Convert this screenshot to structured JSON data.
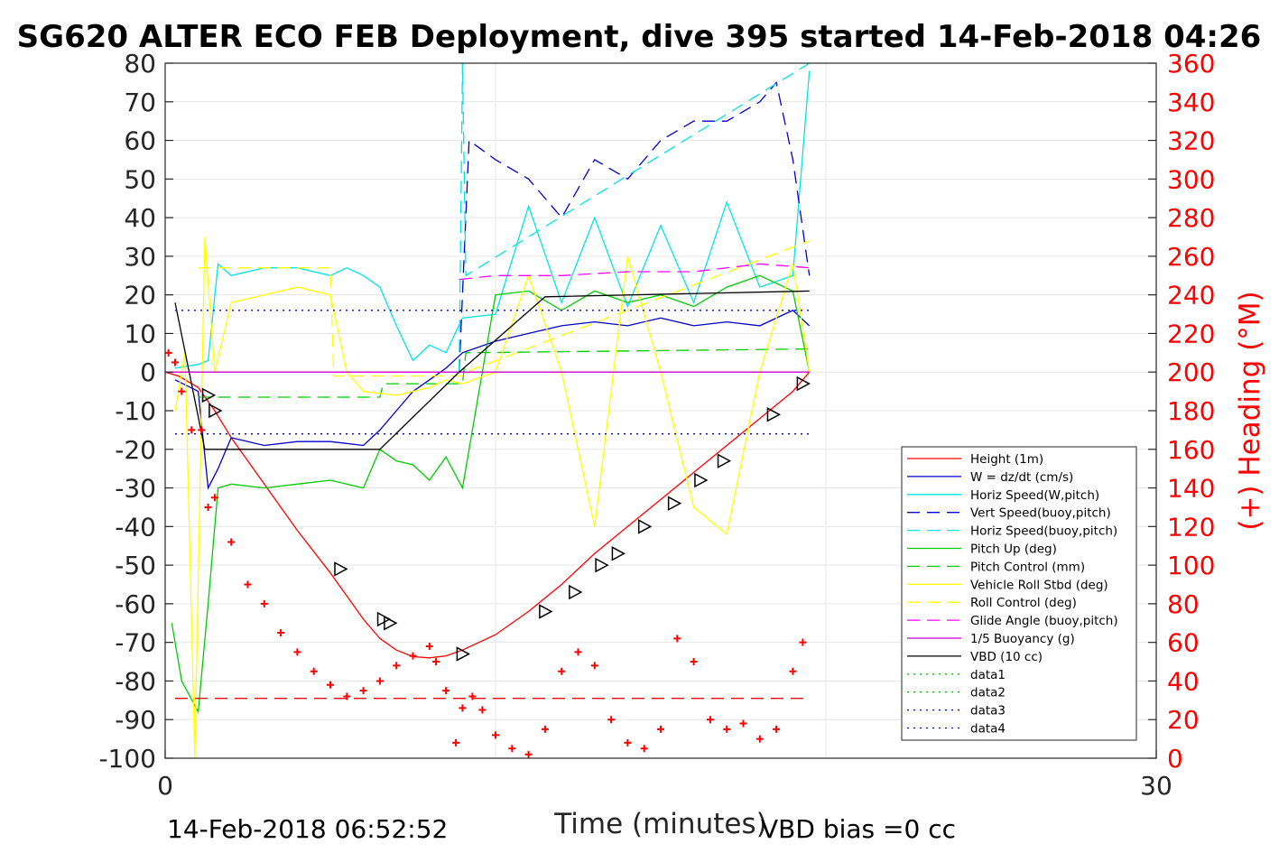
{
  "chart_data": {
    "type": "line",
    "title": "SG620 ALTER ECO FEB Deployment, dive 395 started 14-Feb-2018 04:26",
    "xlabel": "Time (minutes)",
    "ylabel": "",
    "ylabel_right": "(+) Heading (°M)",
    "xlim": [
      0,
      30
    ],
    "ylim": [
      -100,
      80
    ],
    "ylim_right": [
      0,
      360
    ],
    "xticks": [
      "0",
      "30"
    ],
    "yticks": [
      "80",
      "70",
      "60",
      "50",
      "40",
      "30",
      "20",
      "10",
      "0",
      "-10",
      "-20",
      "-30",
      "-40",
      "-50",
      "-60",
      "-70",
      "-80",
      "-90",
      "-100"
    ],
    "yticks_right": [
      "360",
      "340",
      "320",
      "300",
      "280",
      "260",
      "240",
      "220",
      "200",
      "180",
      "160",
      "140",
      "120",
      "100",
      "80",
      "60",
      "40",
      "20",
      "0"
    ],
    "grid": true,
    "legend_position": "lower-right",
    "footer_left": "14-Feb-2018 06:52:52",
    "footer_right": "VBD bias =0 cc",
    "series": [
      {
        "name": "Height (1m)",
        "color": "#ff0000",
        "style": "solid",
        "x": [
          0,
          0.4,
          1,
          1.5,
          2,
          3,
          4,
          5,
          5.5,
          6,
          6.5,
          7,
          7.5,
          8,
          8.5,
          9,
          10,
          11,
          12,
          13,
          14,
          15,
          16,
          17,
          18,
          19,
          19.5
        ],
        "y": [
          0,
          -1,
          -4,
          -10,
          -17,
          -29,
          -41,
          -52,
          -58,
          -64,
          -69,
          -72,
          -73.7,
          -74,
          -73.5,
          -72,
          -68,
          -62,
          -55,
          -47,
          -40,
          -33,
          -26,
          -19,
          -12,
          -5,
          0
        ]
      },
      {
        "name": "W = dz/dt (cm/s)",
        "color": "#0000cc",
        "style": "solid",
        "x": [
          0.3,
          1,
          1.3,
          1.6,
          2,
          3,
          4,
          5,
          6,
          6.5,
          7,
          7.5,
          8,
          8.5,
          9,
          10,
          11,
          12,
          13,
          14,
          15,
          16,
          17,
          18,
          19,
          19.5
        ],
        "y": [
          -2,
          -5,
          -30,
          -25,
          -17,
          -19,
          -18,
          -18,
          -19,
          -15,
          -10,
          -5,
          -2,
          1,
          5,
          8,
          10,
          12,
          13,
          12,
          14,
          12,
          13,
          12,
          16,
          12
        ]
      },
      {
        "name": "Horiz Speed(W,pitch)",
        "color": "#00e5e5",
        "style": "solid",
        "x": [
          0.3,
          1,
          1.3,
          1.6,
          2,
          3,
          4,
          5,
          5.5,
          6,
          6.5,
          7,
          7.5,
          8,
          8.5,
          9,
          10,
          11,
          12,
          13,
          14,
          15,
          16,
          17,
          18,
          19,
          19.5
        ],
        "y": [
          1,
          2,
          3,
          28,
          25,
          27,
          27,
          25,
          27,
          25,
          22,
          12,
          3,
          7,
          5,
          14,
          15,
          43,
          18,
          40,
          17,
          38,
          18,
          44,
          22,
          25,
          78
        ]
      },
      {
        "name": "Vert Speed(buoy,pitch)",
        "color": "#0000cc",
        "style": "dashed",
        "x": [
          8.9,
          9.2,
          10,
          11,
          12,
          13,
          14,
          15,
          16,
          17,
          18,
          18.5,
          19,
          19.5
        ],
        "y": [
          0,
          60,
          55,
          50,
          40,
          55,
          50,
          60,
          65,
          65,
          70,
          75,
          55,
          25
        ]
      },
      {
        "name": "Horiz Speed(buoy,pitch)",
        "color": "#00e5e5",
        "style": "dashed",
        "x": [
          8.9,
          9.0,
          9.1,
          19.5
        ],
        "y": [
          0,
          80,
          25,
          80
        ]
      },
      {
        "name": "Pitch Up (deg)",
        "color": "#00cc00",
        "style": "solid",
        "x": [
          0.2,
          0.5,
          1,
          1.3,
          1.6,
          2,
          3,
          4,
          5,
          6,
          6.5,
          7,
          7.5,
          8,
          8.5,
          9,
          10,
          11,
          12,
          13,
          14,
          15,
          16,
          17,
          18,
          19,
          19.5
        ],
        "y": [
          -65,
          -80,
          -88,
          -60,
          -30,
          -29,
          -30,
          -29,
          -28,
          -30,
          -20,
          -23,
          -24,
          -28,
          -22,
          -30,
          20,
          21,
          16,
          21,
          18,
          20,
          17,
          22,
          25,
          21,
          0
        ]
      },
      {
        "name": "Pitch Control (mm)",
        "color": "#00cc00",
        "style": "dashed",
        "x": [
          1,
          6.5,
          6.6,
          9,
          9.1,
          19.5
        ],
        "y": [
          -6.5,
          -6.5,
          -3,
          -3,
          5,
          6
        ]
      },
      {
        "name": "Vehicle Roll Stbd (deg)",
        "color": "#ffff00",
        "style": "solid",
        "x": [
          0.3,
          0.6,
          0.9,
          1.2,
          1.5,
          2,
          3,
          4,
          5,
          5.5,
          6,
          7,
          8,
          8.5,
          9,
          10,
          11,
          12,
          13,
          14,
          15,
          16,
          17,
          18,
          19,
          19.5
        ],
        "y": [
          -10,
          5,
          -100,
          35,
          0,
          18,
          20,
          22,
          20,
          0,
          -5,
          -6,
          -4,
          -2,
          -3,
          0,
          25,
          0,
          -40,
          30,
          0,
          -35,
          -42,
          0,
          28,
          0
        ]
      },
      {
        "name": "Roll Control (deg)",
        "color": "#ffff00",
        "style": "dashed",
        "x": [
          1,
          5,
          5.1,
          9,
          9.1,
          19.5
        ],
        "y": [
          27,
          27,
          -1,
          -1,
          0,
          34
        ]
      },
      {
        "name": "Glide Angle (buoy,pitch)",
        "color": "#ff00ff",
        "style": "dashed",
        "x": [
          8.9,
          10,
          12,
          14,
          16,
          18,
          19.5
        ],
        "y": [
          24,
          25,
          25,
          26,
          26,
          28,
          27
        ]
      },
      {
        "name": "1/5 Buoyancy (g)",
        "color": "#cc00cc",
        "style": "solid",
        "x": [
          0,
          19.5
        ],
        "y": [
          0,
          0
        ]
      },
      {
        "name": "VBD (10 cc)",
        "color": "#000000",
        "style": "solid",
        "x": [
          0.3,
          1.2,
          6.5,
          8.9,
          11.5,
          19.5
        ],
        "y": [
          18,
          -20,
          -20,
          0,
          19.5,
          21
        ]
      },
      {
        "name": "data1",
        "color": "#00cc00",
        "style": "dotted",
        "x": [],
        "y": []
      },
      {
        "name": "data2",
        "color": "#00cc00",
        "style": "dotted",
        "x": [],
        "y": []
      },
      {
        "name": "data3",
        "color": "#0000cc",
        "style": "dotted",
        "x": [
          0.3,
          19.5
        ],
        "y": [
          16,
          16
        ]
      },
      {
        "name": "data4",
        "color": "#0000cc",
        "style": "dotted",
        "x": [
          0.3,
          19.5
        ],
        "y": [
          -16,
          -16
        ]
      }
    ],
    "heading_reference": {
      "color": "#ff0000",
      "style": "dashed",
      "value_right": 31
    },
    "heading_points": {
      "x": [
        0.1,
        0.3,
        0.5,
        0.8,
        1.1,
        1.3,
        1.5,
        2,
        2.5,
        3,
        3.5,
        4,
        4.5,
        5,
        5.5,
        6,
        6.5,
        7,
        7.5,
        8,
        8.2,
        8.5,
        8.8,
        9,
        9.3,
        9.6,
        10,
        10.5,
        11,
        11.5,
        12,
        12.5,
        13,
        13.5,
        14,
        14.5,
        15,
        15.5,
        16,
        16.5,
        17,
        17.5,
        18,
        18.5,
        19,
        19.3
      ],
      "y": [
        210,
        205,
        190,
        170,
        170,
        130,
        135,
        112,
        90,
        80,
        65,
        55,
        45,
        38,
        32,
        35,
        40,
        48,
        53,
        58,
        50,
        35,
        8,
        26,
        32,
        25,
        12,
        5,
        2,
        15,
        45,
        55,
        48,
        20,
        8,
        5,
        15,
        62,
        50,
        20,
        15,
        18,
        10,
        15,
        45,
        60
      ]
    },
    "triangle_markers": {
      "x": [
        1.3,
        1.5,
        5.3,
        6.6,
        6.8,
        9.0,
        11.5,
        12.4,
        13.2,
        13.7,
        14.5,
        15.4,
        16.2,
        16.9,
        18.4,
        19.3
      ],
      "y": [
        -6,
        -10,
        -51,
        -64,
        -65,
        -73,
        -62,
        -57,
        -50,
        -47,
        -40,
        -34,
        -28,
        -23,
        -11,
        -3
      ]
    }
  }
}
